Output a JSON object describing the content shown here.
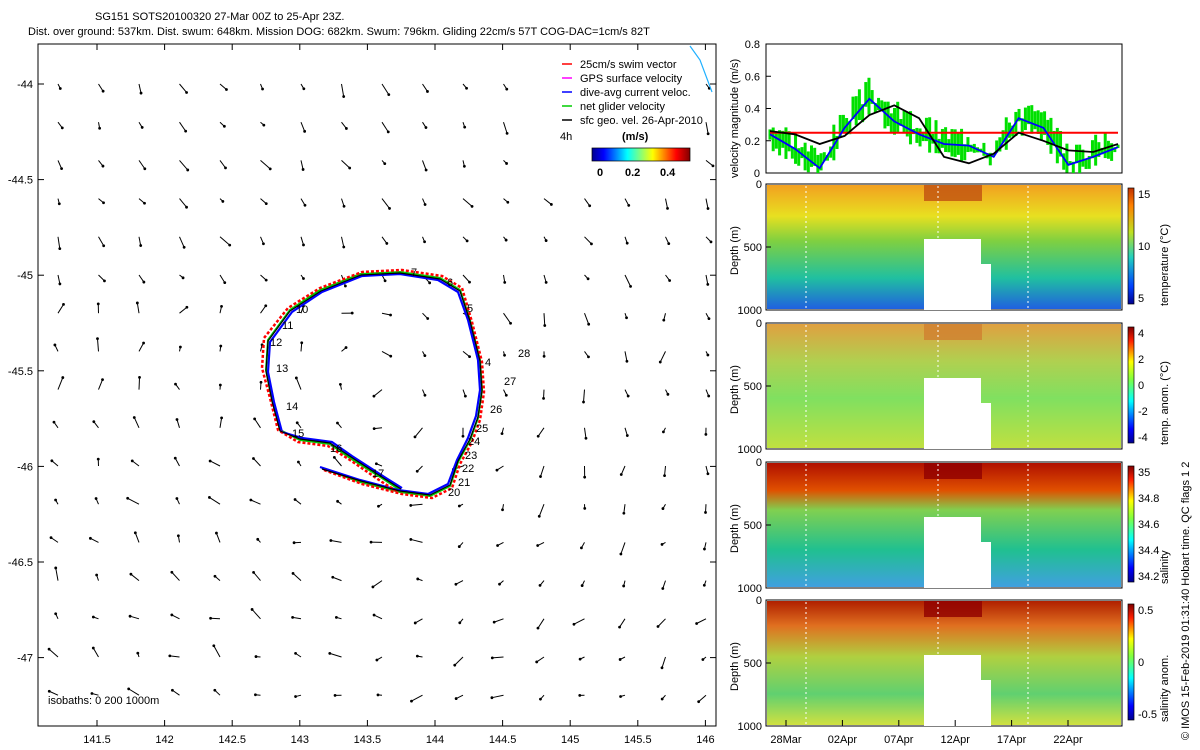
{
  "header": {
    "line1": "SG151 SOTS20100320 27-Mar 00Z to 25-Apr 23Z.",
    "line2": "Dist. over ground: 537km. Dist. swum: 648km. Mission DOG: 682km. Swum: 796km. Gliding 22cm/s 57T COG-DAC=1cm/s 82T"
  },
  "map": {
    "xticks": [
      "141.5",
      "142",
      "142.5",
      "143",
      "143.5",
      "144",
      "144.5",
      "145",
      "145.5",
      "146"
    ],
    "yticks": [
      "-44",
      "-44.5",
      "-45",
      "-45.5",
      "-46",
      "-46.5",
      "-47"
    ],
    "isobaths": "isobaths: 0   200  1000m",
    "legend": [
      "25cm/s swim vector",
      "GPS surface velocity",
      "dive-avg current veloc.",
      "net glider velocity",
      "sfc geo. vel. 26-Apr-2010"
    ],
    "legend_colors": [
      "#ff0000",
      "#ff00ff",
      "#0000ff",
      "#00cc00",
      "#000000"
    ],
    "interval": "4h",
    "colorbar_title": "(m/s)",
    "colorbar_ticks": [
      "0",
      "0.2",
      "0.4"
    ],
    "day_labels": [
      "4",
      "5",
      "6",
      "7",
      "10",
      "11",
      "12",
      "13",
      "14",
      "15",
      "16",
      "17",
      "20",
      "21",
      "22",
      "23",
      "24",
      "25",
      "26",
      "27",
      "28"
    ]
  },
  "panels": {
    "vel": {
      "ylabel": "velocity magnitude (m/s)",
      "yticks": [
        "0",
        "0.2",
        "0.4",
        "0.6",
        "0.8"
      ]
    },
    "temp": {
      "ylabel": "Depth (m)",
      "cb_label": "temperature (°C)",
      "cb_ticks": [
        "15",
        "10",
        "5"
      ],
      "yticks": [
        "0",
        "500",
        "1000"
      ]
    },
    "tanom": {
      "ylabel": "Depth (m)",
      "cb_label": "temp. anom. (°C)",
      "cb_ticks": [
        "4",
        "2",
        "0",
        "-2",
        "-4"
      ],
      "yticks": [
        "0",
        "500",
        "1000"
      ]
    },
    "sal": {
      "ylabel": "Depth (m)",
      "cb_label": "salinity",
      "cb_ticks": [
        "35",
        "34.8",
        "34.6",
        "34.4",
        "34.2"
      ],
      "yticks": [
        "0",
        "500",
        "1000"
      ]
    },
    "sanom": {
      "ylabel": "Depth (m)",
      "cb_label": "salinity anom.",
      "cb_ticks": [
        "0.5",
        "0",
        "-0.5"
      ],
      "yticks": [
        "0",
        "500",
        "1000"
      ]
    },
    "xticks": [
      "28Mar",
      "02Apr",
      "07Apr",
      "12Apr",
      "17Apr",
      "22Apr"
    ]
  },
  "footer": {
    "credit": "© IMOS 15-Feb-2019 01:31:40 Hobart time. QC flags 1  2"
  },
  "chart_data": {
    "type": "line",
    "title": "SG151 SOTS20100320 27-Mar 00Z to 25-Apr 23Z.",
    "xlabel": "",
    "ylabel": "velocity magnitude (m/s)",
    "ylim": [
      0,
      0.8
    ],
    "x": [
      "28Mar",
      "30Mar",
      "01Apr",
      "03Apr",
      "05Apr",
      "07Apr",
      "09Apr",
      "11Apr",
      "13Apr",
      "15Apr",
      "17Apr",
      "19Apr",
      "21Apr",
      "23Apr",
      "25Apr"
    ],
    "series": [
      {
        "name": "25cm/s swim vector",
        "values": [
          0.25,
          0.25,
          0.25,
          0.25,
          0.25,
          0.25,
          0.25,
          0.25,
          0.25,
          0.25,
          0.25,
          0.25,
          0.25,
          0.25,
          0.25
        ]
      },
      {
        "name": "dive-avg current veloc.",
        "values": [
          0.24,
          0.15,
          0.03,
          0.28,
          0.46,
          0.32,
          0.24,
          0.18,
          0.17,
          0.1,
          0.34,
          0.28,
          0.05,
          0.1,
          0.16
        ]
      },
      {
        "name": "sfc geo. vel.",
        "values": [
          0.26,
          0.24,
          0.18,
          0.23,
          0.36,
          0.42,
          0.34,
          0.1,
          0.06,
          0.12,
          0.25,
          0.2,
          0.14,
          0.13,
          0.18
        ]
      }
    ]
  }
}
